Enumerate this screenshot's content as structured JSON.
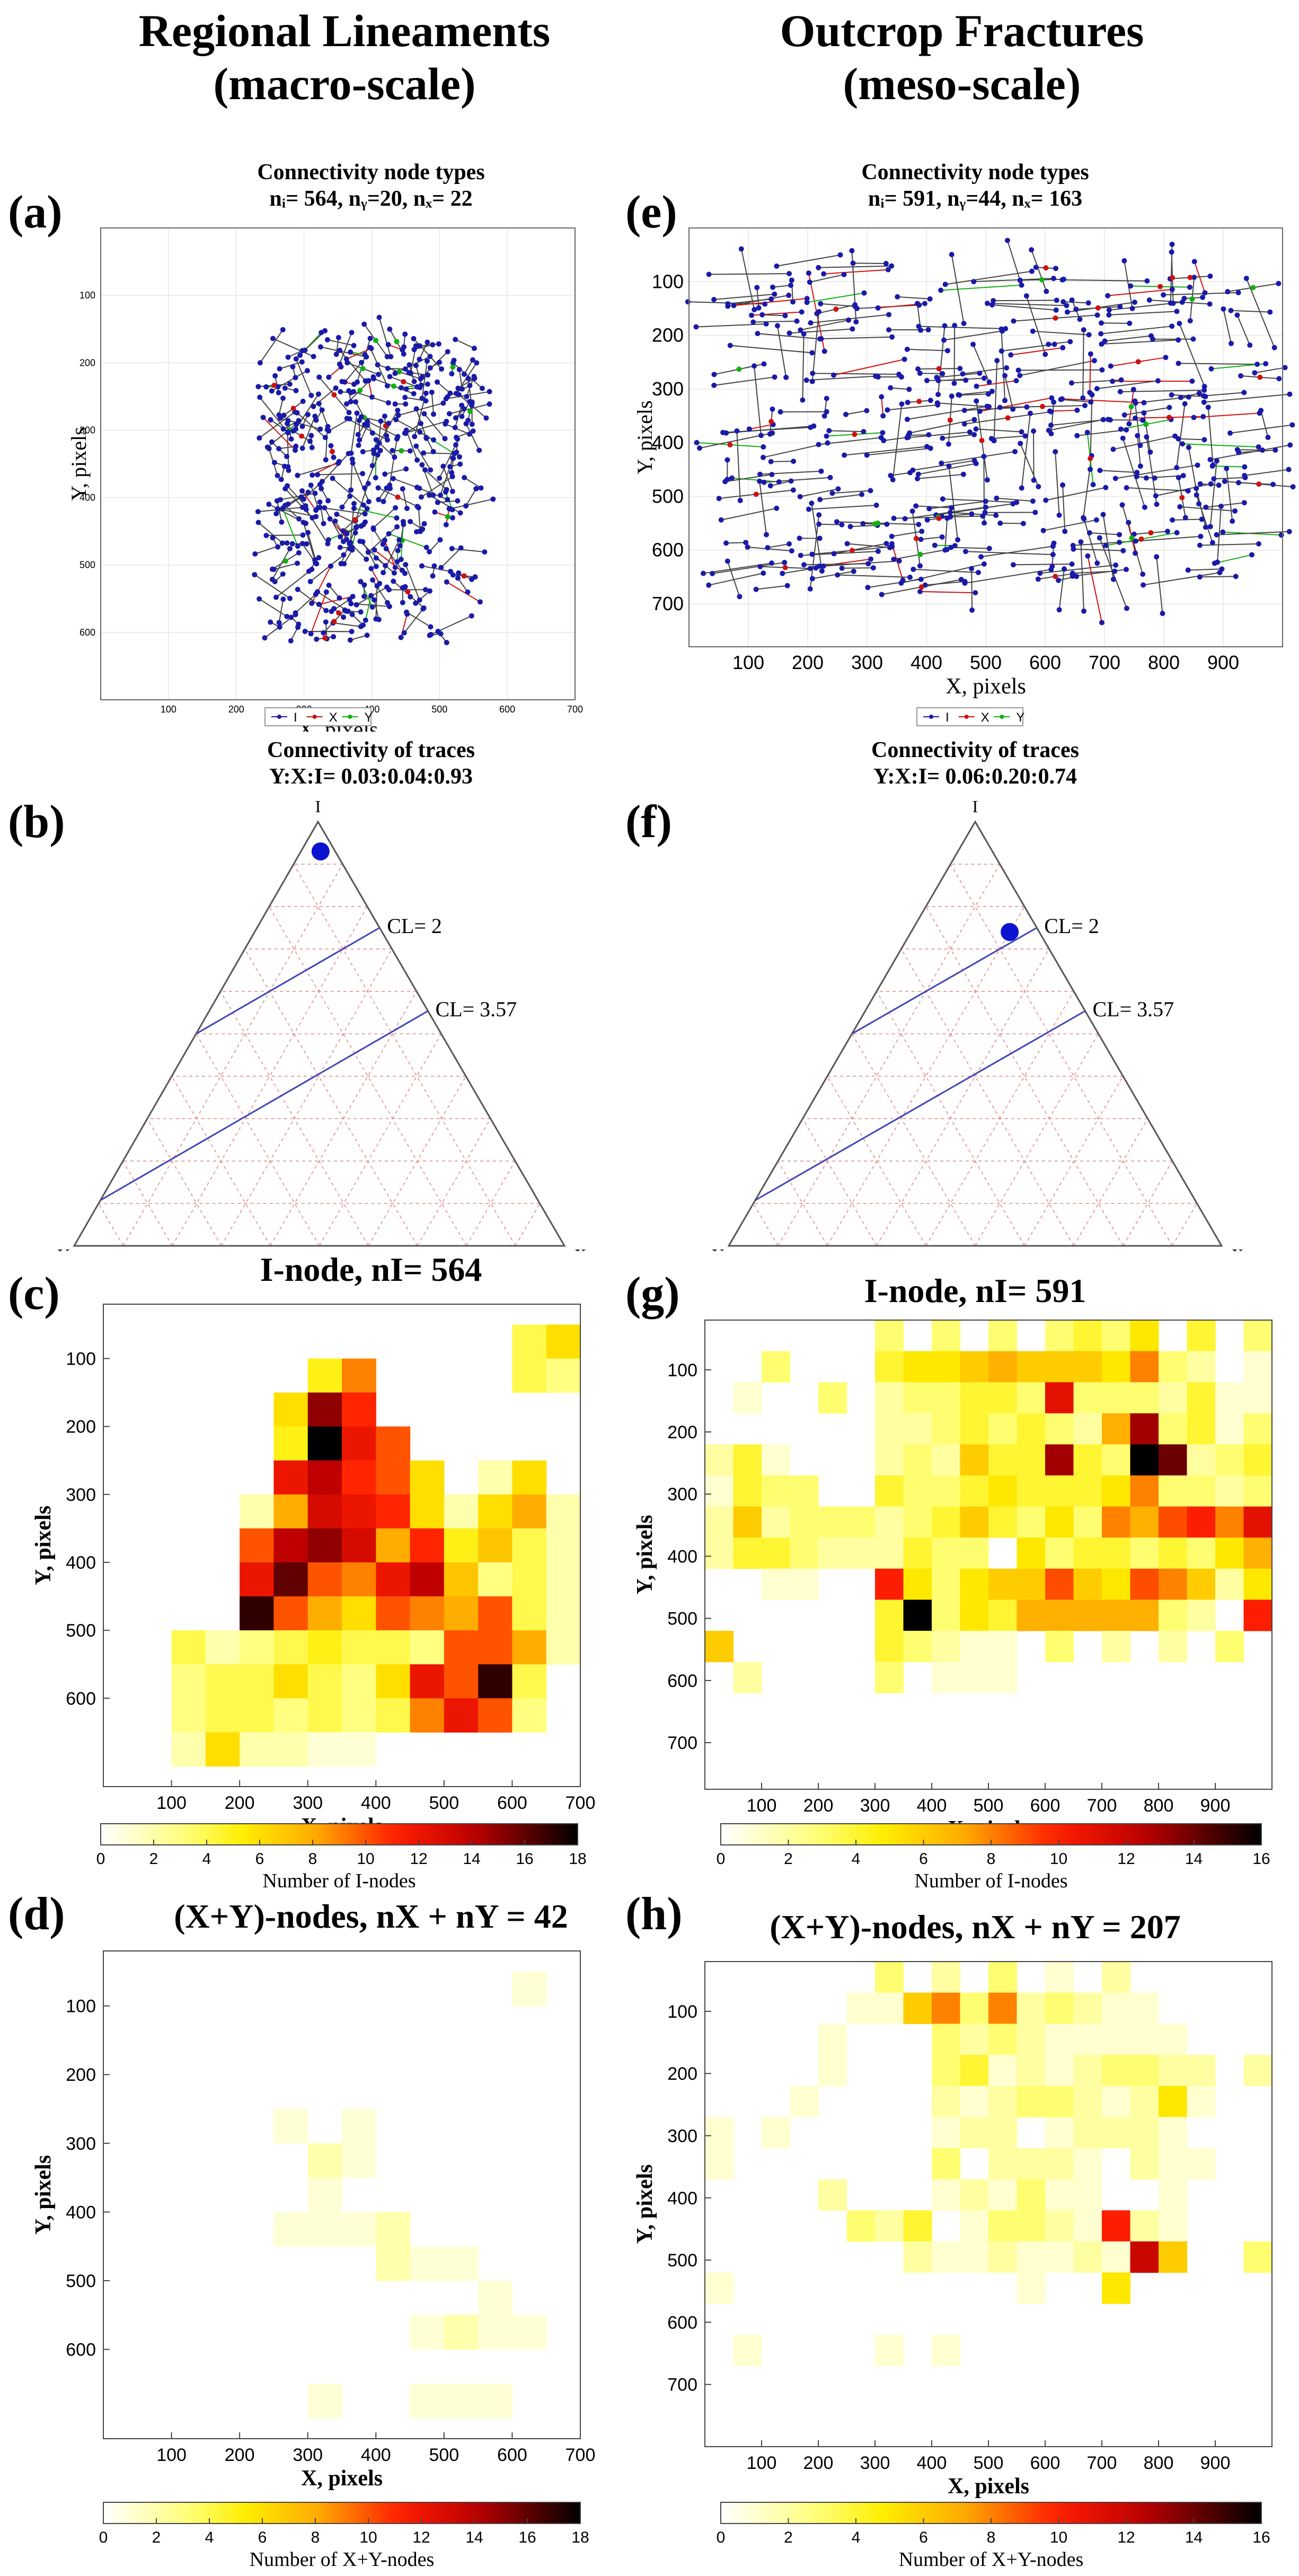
{
  "headers": {
    "left_line1": "Regional Lineaments",
    "left_line2": "(macro-scale)",
    "right_line1": "Outcrop Fractures",
    "right_line2": "(meso-scale)"
  },
  "panel_labels": {
    "a": "(a)",
    "b": "(b)",
    "c": "(c)",
    "d": "(d)",
    "e": "(e)",
    "f": "(f)",
    "g": "(g)",
    "h": "(h)"
  },
  "chart_data": [
    {
      "id": "a",
      "type": "network",
      "title": "Connectivity node types",
      "subtitle": "nᵢ= 564, nᵧ=20, nₓ= 22",
      "xlabel": "X, pixels",
      "ylabel": "Y, pixels",
      "xlim": [
        0,
        700
      ],
      "ylim": [
        0,
        700
      ],
      "xticks": [
        100,
        200,
        300,
        400,
        500,
        600,
        700
      ],
      "yticks": [
        100,
        200,
        300,
        400,
        500,
        600
      ],
      "legend": [
        "I",
        "X",
        "Y"
      ],
      "node_counts": {
        "I": 564,
        "Y": 20,
        "X": 22
      }
    },
    {
      "id": "b",
      "type": "ternary",
      "title": "Connectivity of traces",
      "subtitle": "Y:X:I= 0.03:0.04:0.93",
      "corners": {
        "top": "I",
        "left": "Y",
        "right": "X"
      },
      "point": {
        "Y": 0.03,
        "X": 0.04,
        "I": 0.93
      },
      "cl_lines": [
        {
          "label": "CL= 2",
          "value": 2
        },
        {
          "label": "CL= 3.57",
          "value": 3.57
        }
      ]
    },
    {
      "id": "c",
      "type": "heatmap",
      "title": "I-node, nI= 564",
      "xlabel": "X, pixels",
      "ylabel": "Y, pixels",
      "xticks": [
        100,
        200,
        300,
        400,
        500,
        600,
        700
      ],
      "yticks": [
        100,
        200,
        300,
        400,
        500,
        600
      ],
      "cell_size": 50,
      "colorbar_label": "Number of I-nodes",
      "colorbar_ticks": [
        0,
        2,
        4,
        6,
        8,
        10,
        12,
        14,
        16,
        18
      ],
      "vmax": 18,
      "origin_xy": [
        50,
        0
      ],
      "grid": [
        [
          0,
          0,
          0,
          0,
          0,
          0,
          0,
          0,
          0,
          0,
          0,
          0,
          0,
          0
        ],
        [
          0,
          0,
          0,
          0,
          0,
          0,
          0,
          0,
          0,
          0,
          0,
          4,
          6,
          3
        ],
        [
          0,
          0,
          0,
          0,
          0,
          5,
          9,
          0,
          0,
          0,
          0,
          4,
          3,
          0
        ],
        [
          0,
          0,
          0,
          0,
          6,
          15,
          11,
          0,
          0,
          0,
          0,
          0,
          0,
          0
        ],
        [
          0,
          0,
          0,
          0,
          5,
          18,
          12,
          10,
          0,
          0,
          0,
          0,
          0,
          0
        ],
        [
          0,
          0,
          0,
          0,
          12,
          14,
          11,
          10,
          6,
          0,
          2,
          6,
          0,
          0
        ],
        [
          0,
          0,
          0,
          2,
          8,
          13,
          12,
          11,
          6,
          2,
          6,
          8,
          2,
          0
        ],
        [
          0,
          0,
          0,
          10,
          14,
          15,
          13,
          8,
          11,
          5,
          7,
          4,
          2,
          0
        ],
        [
          0,
          0,
          0,
          12,
          16,
          10,
          9,
          12,
          14,
          7,
          3,
          4,
          2,
          0
        ],
        [
          0,
          0,
          0,
          17,
          10,
          8,
          6,
          10,
          9,
          8,
          10,
          4,
          2,
          0
        ],
        [
          0,
          4,
          2,
          3,
          4,
          5,
          4,
          4,
          3,
          10,
          10,
          8,
          2,
          0
        ],
        [
          0,
          3,
          4,
          4,
          6,
          4,
          3,
          6,
          12,
          10,
          17,
          4,
          0,
          0
        ],
        [
          0,
          3,
          4,
          4,
          3,
          4,
          3,
          4,
          9,
          12,
          10,
          3,
          0,
          0
        ],
        [
          0,
          2,
          6,
          2,
          2,
          1,
          1,
          0,
          0,
          0,
          0,
          0,
          0,
          0
        ]
      ]
    },
    {
      "id": "d",
      "type": "heatmap",
      "title": "(X+Y)-nodes, nX + nY = 42",
      "xlabel": "X, pixels",
      "ylabel": "Y, pixels",
      "xticks": [
        100,
        200,
        300,
        400,
        500,
        600,
        700
      ],
      "yticks": [
        100,
        200,
        300,
        400,
        500,
        600
      ],
      "cell_size": 50,
      "colorbar_label": "Number of X+Y-nodes",
      "colorbar_ticks": [
        0,
        2,
        4,
        6,
        8,
        10,
        12,
        14,
        16,
        18
      ],
      "vmax": 18,
      "origin_xy": [
        50,
        0
      ],
      "grid": [
        [
          0,
          0,
          0,
          0,
          0,
          0,
          0,
          0,
          0,
          0,
          0,
          0,
          0,
          0
        ],
        [
          0,
          0,
          0,
          0,
          0,
          0,
          0,
          0,
          0,
          0,
          0,
          1,
          0,
          0
        ],
        [
          0,
          0,
          0,
          0,
          0,
          0,
          0,
          0,
          0,
          0,
          0,
          0,
          0,
          0
        ],
        [
          0,
          0,
          0,
          0,
          0,
          0,
          0,
          0,
          0,
          0,
          0,
          0,
          0,
          0
        ],
        [
          0,
          0,
          0,
          0,
          0,
          0,
          0,
          0,
          0,
          0,
          0,
          0,
          0,
          0
        ],
        [
          0,
          0,
          0,
          0,
          1,
          0,
          1,
          0,
          0,
          0,
          0,
          0,
          0,
          0
        ],
        [
          0,
          0,
          0,
          0,
          0,
          2,
          1,
          0,
          0,
          0,
          0,
          0,
          0,
          0
        ],
        [
          0,
          0,
          0,
          0,
          0,
          1,
          0,
          0,
          0,
          0,
          0,
          0,
          0,
          0
        ],
        [
          0,
          0,
          0,
          0,
          1,
          1,
          1,
          2,
          0,
          0,
          0,
          0,
          0,
          0
        ],
        [
          0,
          0,
          0,
          0,
          0,
          0,
          0,
          2,
          1,
          1,
          0,
          0,
          0,
          0
        ],
        [
          0,
          0,
          0,
          0,
          0,
          0,
          0,
          0,
          0,
          0,
          1,
          0,
          0,
          0
        ],
        [
          0,
          0,
          0,
          0,
          0,
          0,
          0,
          0,
          1,
          2,
          1,
          1,
          0,
          0
        ],
        [
          0,
          0,
          0,
          0,
          0,
          0,
          0,
          0,
          0,
          0,
          0,
          0,
          0,
          0
        ],
        [
          0,
          0,
          0,
          0,
          0,
          1,
          0,
          0,
          1,
          1,
          1,
          0,
          0,
          0
        ]
      ]
    },
    {
      "id": "e",
      "type": "network",
      "title": "Connectivity node types",
      "subtitle": "nᵢ= 591, nᵧ=44, nₓ= 163",
      "xlabel": "X, pixels",
      "ylabel": "Y, pixels",
      "xlim": [
        0,
        1000
      ],
      "ylim": [
        0,
        780
      ],
      "xticks": [
        100,
        200,
        300,
        400,
        500,
        600,
        700,
        800,
        900
      ],
      "yticks": [
        100,
        200,
        300,
        400,
        500,
        600,
        700
      ],
      "legend": [
        "I",
        "X",
        "Y"
      ],
      "node_counts": {
        "I": 591,
        "Y": 44,
        "X": 163
      }
    },
    {
      "id": "f",
      "type": "ternary",
      "title": "Connectivity of traces",
      "subtitle": "Y:X:I= 0.06:0.20:0.74",
      "corners": {
        "top": "I",
        "left": "Y",
        "right": "X"
      },
      "point": {
        "Y": 0.06,
        "X": 0.2,
        "I": 0.74
      },
      "cl_lines": [
        {
          "label": "CL= 2",
          "value": 2
        },
        {
          "label": "CL= 3.57",
          "value": 3.57
        }
      ]
    },
    {
      "id": "g",
      "type": "heatmap",
      "title": "I-node, nI= 591",
      "xlabel": "X, pixels",
      "ylabel": "Y, pixels",
      "xticks": [
        100,
        200,
        300,
        400,
        500,
        600,
        700,
        800,
        900
      ],
      "yticks": [
        100,
        200,
        300,
        400,
        500,
        600,
        700
      ],
      "cell_size": 50,
      "colorbar_label": "Number of I-nodes",
      "colorbar_ticks": [
        0,
        2,
        4,
        6,
        8,
        10,
        12,
        14,
        16
      ],
      "vmax": 16,
      "origin_xy": [
        0,
        20
      ],
      "grid": [
        [
          0,
          0,
          0,
          0,
          0,
          0,
          3,
          0,
          3,
          0,
          3,
          0,
          3,
          4,
          3,
          5,
          0,
          4,
          0,
          3
        ],
        [
          0,
          0,
          3,
          0,
          0,
          0,
          4,
          5,
          5,
          6,
          7,
          6,
          6,
          6,
          5,
          8,
          3,
          2,
          0,
          1
        ],
        [
          0,
          1,
          0,
          0,
          3,
          0,
          2,
          3,
          3,
          4,
          4,
          3,
          11,
          3,
          3,
          3,
          2,
          4,
          1,
          1
        ],
        [
          0,
          0,
          0,
          0,
          0,
          0,
          2,
          2,
          3,
          4,
          3,
          4,
          3,
          2,
          7,
          13,
          3,
          4,
          1,
          3
        ],
        [
          2,
          4,
          1,
          0,
          0,
          0,
          2,
          3,
          2,
          6,
          4,
          4,
          13,
          4,
          3,
          16,
          14,
          2,
          3,
          4
        ],
        [
          1,
          4,
          3,
          3,
          0,
          0,
          4,
          3,
          3,
          4,
          5,
          4,
          4,
          4,
          5,
          8,
          3,
          3,
          2,
          3
        ],
        [
          2,
          6,
          2,
          3,
          3,
          3,
          2,
          3,
          4,
          6,
          4,
          3,
          5,
          3,
          8,
          7,
          9,
          10,
          8,
          11
        ],
        [
          2,
          4,
          4,
          3,
          2,
          2,
          2,
          4,
          3,
          3,
          0,
          5,
          3,
          4,
          4,
          3,
          4,
          3,
          5,
          7
        ],
        [
          0,
          0,
          1,
          1,
          0,
          0,
          10,
          5,
          3,
          5,
          6,
          6,
          9,
          6,
          5,
          9,
          8,
          6,
          2,
          5
        ],
        [
          0,
          0,
          0,
          0,
          0,
          0,
          4,
          16,
          3,
          5,
          4,
          7,
          7,
          7,
          7,
          7,
          3,
          2,
          0,
          10
        ],
        [
          6,
          0,
          0,
          0,
          0,
          0,
          4,
          3,
          2,
          1,
          1,
          0,
          3,
          0,
          2,
          0,
          2,
          0,
          3,
          0
        ],
        [
          0,
          2,
          0,
          0,
          0,
          0,
          3,
          0,
          1,
          1,
          1,
          0,
          0,
          0,
          0,
          0,
          0,
          0,
          0,
          0
        ],
        [
          0,
          0,
          0,
          0,
          0,
          0,
          0,
          0,
          0,
          0,
          0,
          0,
          0,
          0,
          0,
          0,
          0,
          0,
          0,
          0
        ]
      ]
    },
    {
      "id": "h",
      "type": "heatmap",
      "title": "(X+Y)-nodes, nX + nY = 207",
      "xlabel": "X, pixels",
      "ylabel": "Y, pixels",
      "xticks": [
        100,
        200,
        300,
        400,
        500,
        600,
        700,
        800,
        900
      ],
      "yticks": [
        100,
        200,
        300,
        400,
        500,
        600,
        700
      ],
      "cell_size": 50,
      "colorbar_label": "Number of X+Y-nodes",
      "colorbar_ticks": [
        0,
        2,
        4,
        6,
        8,
        10,
        12,
        14,
        16
      ],
      "vmax": 16,
      "origin_xy": [
        0,
        20
      ],
      "grid": [
        [
          0,
          0,
          0,
          0,
          0,
          0,
          3,
          0,
          2,
          0,
          3,
          0,
          1,
          0,
          2,
          0,
          0,
          0,
          0,
          0
        ],
        [
          0,
          0,
          0,
          0,
          0,
          1,
          1,
          6,
          8,
          3,
          8,
          2,
          3,
          2,
          1,
          1,
          0,
          0,
          0,
          0
        ],
        [
          0,
          0,
          0,
          0,
          1,
          0,
          0,
          0,
          3,
          2,
          3,
          2,
          1,
          1,
          1,
          1,
          1,
          0,
          0,
          0
        ],
        [
          0,
          0,
          0,
          0,
          1,
          0,
          0,
          0,
          3,
          4,
          1,
          2,
          1,
          2,
          3,
          3,
          2,
          2,
          0,
          2
        ],
        [
          0,
          0,
          0,
          1,
          0,
          0,
          0,
          0,
          2,
          1,
          2,
          3,
          3,
          2,
          1,
          2,
          5,
          1,
          0,
          0
        ],
        [
          1,
          0,
          1,
          0,
          0,
          0,
          0,
          0,
          1,
          2,
          2,
          0,
          1,
          2,
          2,
          2,
          1,
          0,
          0,
          0
        ],
        [
          1,
          0,
          0,
          0,
          0,
          0,
          0,
          0,
          3,
          0,
          2,
          2,
          2,
          1,
          0,
          2,
          1,
          1,
          0,
          0
        ],
        [
          0,
          0,
          0,
          0,
          2,
          0,
          0,
          0,
          1,
          2,
          1,
          3,
          1,
          1,
          0,
          0,
          1,
          0,
          0,
          0
        ],
        [
          0,
          0,
          0,
          0,
          0,
          3,
          2,
          4,
          0,
          1,
          3,
          3,
          2,
          1,
          10,
          2,
          1,
          0,
          0,
          0
        ],
        [
          0,
          0,
          0,
          0,
          0,
          0,
          0,
          2,
          1,
          1,
          2,
          1,
          1,
          2,
          1,
          12,
          6,
          0,
          0,
          3
        ],
        [
          1,
          0,
          0,
          0,
          0,
          0,
          0,
          0,
          0,
          0,
          0,
          1,
          0,
          0,
          5,
          0,
          0,
          0,
          0,
          0
        ],
        [
          0,
          0,
          0,
          0,
          0,
          0,
          0,
          0,
          0,
          0,
          0,
          0,
          0,
          0,
          0,
          0,
          0,
          0,
          0,
          0
        ],
        [
          0,
          1,
          0,
          0,
          0,
          0,
          1,
          0,
          1,
          0,
          0,
          0,
          0,
          0,
          0,
          0,
          0,
          0,
          0,
          0
        ]
      ]
    }
  ]
}
